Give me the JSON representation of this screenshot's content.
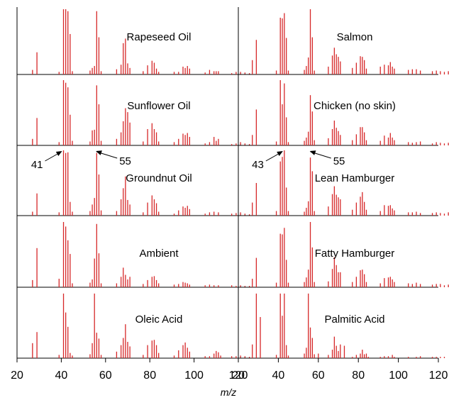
{
  "chart_data": {
    "type": "bar",
    "xlabel": "m/z",
    "xlim": [
      20,
      120
    ],
    "xticks": [
      20,
      40,
      60,
      80,
      100,
      120
    ],
    "bar_color": "#d62728",
    "layout": "5 rows x 2 columns of small-multiple mass spectra sharing the m/z axis",
    "panels": [
      {
        "label": "Rapeseed Oil",
        "x": [
          27,
          29,
          39,
          41,
          42,
          43,
          44,
          45,
          53,
          54,
          55,
          56,
          57,
          58,
          65,
          67,
          68,
          69,
          70,
          71,
          77,
          79,
          81,
          82,
          83,
          84,
          91,
          93,
          95,
          96,
          97,
          98,
          105,
          107,
          109,
          110,
          111,
          117,
          119,
          121,
          123,
          125
        ],
        "values": [
          0.07,
          0.34,
          0.04,
          1.0,
          1.0,
          0.97,
          0.62,
          0.05,
          0.06,
          0.1,
          0.13,
          0.97,
          0.57,
          0.05,
          0.08,
          0.15,
          0.48,
          0.55,
          0.17,
          0.1,
          0.05,
          0.14,
          0.21,
          0.18,
          0.09,
          0.04,
          0.04,
          0.04,
          0.12,
          0.1,
          0.13,
          0.09,
          0.03,
          0.07,
          0.05,
          0.05,
          0.05,
          0.02,
          0.04,
          0.04,
          0.03,
          0.02
        ]
      },
      {
        "label": "Salmon",
        "x": [
          27,
          29,
          39,
          41,
          42,
          43,
          44,
          45,
          53,
          54,
          55,
          56,
          57,
          58,
          65,
          67,
          68,
          69,
          70,
          71,
          77,
          79,
          81,
          82,
          83,
          84,
          91,
          93,
          95,
          96,
          97,
          98,
          105,
          107,
          109,
          111,
          117,
          119,
          121,
          123,
          125
        ],
        "values": [
          0.22,
          0.53,
          0.06,
          0.87,
          0.86,
          0.94,
          0.56,
          0.06,
          0.07,
          0.13,
          0.26,
          1.0,
          0.57,
          0.06,
          0.12,
          0.29,
          0.41,
          0.31,
          0.27,
          0.2,
          0.1,
          0.18,
          0.28,
          0.27,
          0.22,
          0.09,
          0.12,
          0.15,
          0.14,
          0.19,
          0.12,
          0.09,
          0.07,
          0.08,
          0.08,
          0.06,
          0.05,
          0.06,
          0.05,
          0.04,
          0.05
        ]
      },
      {
        "label": "Sunflower Oil",
        "x": [
          27,
          29,
          39,
          41,
          42,
          43,
          44,
          45,
          53,
          54,
          55,
          56,
          57,
          58,
          65,
          67,
          68,
          69,
          70,
          71,
          77,
          79,
          81,
          82,
          83,
          84,
          91,
          93,
          95,
          96,
          97,
          98,
          105,
          107,
          109,
          110,
          111,
          117,
          119,
          121,
          123,
          125
        ],
        "values": [
          0.1,
          0.42,
          0.05,
          1.0,
          0.96,
          0.89,
          0.47,
          0.07,
          0.06,
          0.23,
          0.24,
          0.92,
          0.63,
          0.07,
          0.1,
          0.2,
          0.37,
          0.57,
          0.51,
          0.35,
          0.06,
          0.25,
          0.34,
          0.25,
          0.2,
          0.06,
          0.05,
          0.1,
          0.18,
          0.16,
          0.19,
          0.13,
          0.03,
          0.05,
          0.13,
          0.07,
          0.1,
          0.02,
          0.03,
          0.05,
          0.03,
          0.02
        ]
      },
      {
        "label": "Chicken (no skin)",
        "x": [
          27,
          29,
          39,
          41,
          42,
          43,
          44,
          45,
          53,
          54,
          55,
          56,
          57,
          58,
          65,
          67,
          68,
          69,
          70,
          71,
          77,
          79,
          81,
          82,
          83,
          84,
          91,
          93,
          95,
          96,
          97,
          98,
          105,
          107,
          109,
          111,
          117,
          119,
          121,
          123,
          125
        ],
        "values": [
          0.16,
          0.55,
          0.06,
          1.0,
          0.63,
          0.95,
          0.43,
          0.05,
          0.07,
          0.12,
          0.21,
          0.77,
          0.52,
          0.08,
          0.11,
          0.25,
          0.38,
          0.27,
          0.22,
          0.16,
          0.08,
          0.17,
          0.28,
          0.28,
          0.2,
          0.08,
          0.07,
          0.15,
          0.12,
          0.19,
          0.12,
          0.08,
          0.05,
          0.04,
          0.05,
          0.06,
          0.03,
          0.05,
          0.04,
          0.03,
          0.04
        ]
      },
      {
        "label": "Groundnut Oil",
        "x": [
          27,
          29,
          39,
          41,
          42,
          43,
          44,
          45,
          53,
          54,
          55,
          56,
          57,
          58,
          65,
          67,
          68,
          69,
          70,
          71,
          77,
          79,
          81,
          82,
          83,
          84,
          91,
          93,
          95,
          96,
          97,
          98,
          105,
          107,
          109,
          111,
          117,
          119,
          121,
          123,
          125
        ],
        "values": [
          0.06,
          0.34,
          0.05,
          1.0,
          0.96,
          0.97,
          0.21,
          0.06,
          0.07,
          0.17,
          0.27,
          0.96,
          0.63,
          0.08,
          0.07,
          0.25,
          0.42,
          0.6,
          0.24,
          0.17,
          0.05,
          0.2,
          0.31,
          0.25,
          0.19,
          0.06,
          0.03,
          0.08,
          0.14,
          0.12,
          0.15,
          0.1,
          0.03,
          0.05,
          0.06,
          0.05,
          0.03,
          0.04,
          0.05,
          0.03,
          0.02
        ]
      },
      {
        "label": "Lean Hamburger",
        "x": [
          27,
          29,
          39,
          41,
          42,
          43,
          44,
          45,
          53,
          54,
          55,
          56,
          57,
          58,
          65,
          67,
          68,
          69,
          70,
          71,
          77,
          79,
          81,
          82,
          83,
          84,
          91,
          93,
          95,
          96,
          97,
          98,
          105,
          107,
          109,
          111,
          117,
          119,
          121,
          123,
          125
        ],
        "values": [
          0.2,
          0.5,
          0.07,
          0.83,
          0.9,
          1.0,
          0.43,
          0.07,
          0.06,
          0.12,
          0.22,
          0.89,
          0.68,
          0.07,
          0.14,
          0.33,
          0.45,
          0.32,
          0.28,
          0.25,
          0.09,
          0.2,
          0.29,
          0.36,
          0.21,
          0.09,
          0.07,
          0.16,
          0.15,
          0.16,
          0.11,
          0.08,
          0.05,
          0.05,
          0.06,
          0.04,
          0.04,
          0.05,
          0.04,
          0.03,
          0.05
        ]
      },
      {
        "label": "Ambient",
        "x": [
          27,
          29,
          39,
          41,
          42,
          43,
          44,
          45,
          53,
          54,
          55,
          56,
          57,
          58,
          65,
          67,
          68,
          69,
          70,
          71,
          77,
          79,
          81,
          82,
          83,
          84,
          91,
          93,
          95,
          96,
          97,
          98,
          105,
          107,
          109,
          111,
          117,
          119,
          121,
          123,
          125
        ],
        "values": [
          0.11,
          0.6,
          0.13,
          1.0,
          0.93,
          0.72,
          0.51,
          0.06,
          0.07,
          0.12,
          0.44,
          0.97,
          0.52,
          0.06,
          0.06,
          0.16,
          0.3,
          0.19,
          0.12,
          0.16,
          0.05,
          0.11,
          0.16,
          0.17,
          0.11,
          0.06,
          0.04,
          0.05,
          0.08,
          0.07,
          0.06,
          0.04,
          0.03,
          0.04,
          0.03,
          0.03,
          0.03,
          0.02,
          0.03,
          0.02,
          0.02
        ]
      },
      {
        "label": "Fatty Hamburger",
        "x": [
          27,
          29,
          39,
          41,
          42,
          43,
          44,
          45,
          53,
          54,
          55,
          56,
          57,
          58,
          65,
          67,
          68,
          69,
          70,
          71,
          77,
          79,
          81,
          82,
          83,
          84,
          91,
          93,
          95,
          96,
          97,
          98,
          105,
          107,
          109,
          111,
          117,
          119,
          121,
          123,
          125
        ],
        "values": [
          0.13,
          0.45,
          0.07,
          0.82,
          0.81,
          0.91,
          0.42,
          0.07,
          0.08,
          0.15,
          0.27,
          1.0,
          0.61,
          0.08,
          0.09,
          0.28,
          0.46,
          0.34,
          0.23,
          0.23,
          0.08,
          0.16,
          0.26,
          0.27,
          0.2,
          0.08,
          0.06,
          0.14,
          0.15,
          0.16,
          0.12,
          0.08,
          0.06,
          0.05,
          0.07,
          0.05,
          0.04,
          0.05,
          0.05,
          0.03,
          0.04
        ]
      },
      {
        "label": "Oleic Acid",
        "x": [
          27,
          29,
          39,
          41,
          42,
          43,
          44,
          45,
          53,
          54,
          55,
          56,
          57,
          58,
          65,
          67,
          68,
          69,
          70,
          71,
          77,
          79,
          81,
          82,
          83,
          84,
          91,
          93,
          95,
          96,
          97,
          98,
          105,
          107,
          109,
          110,
          111,
          112,
          117,
          119,
          121,
          123,
          125
        ],
        "values": [
          0.23,
          0.4,
          0.05,
          0.99,
          0.7,
          0.48,
          0.08,
          0.04,
          0.06,
          0.23,
          0.99,
          0.39,
          0.3,
          0.05,
          0.1,
          0.2,
          0.31,
          0.52,
          0.25,
          0.18,
          0.05,
          0.2,
          0.27,
          0.28,
          0.2,
          0.08,
          0.04,
          0.12,
          0.2,
          0.24,
          0.16,
          0.1,
          0.03,
          0.03,
          0.07,
          0.11,
          0.09,
          0.04,
          0.03,
          0.03,
          0.04,
          0.03,
          0.02
        ]
      },
      {
        "label": "Palmitic Acid",
        "x": [
          27,
          29,
          31,
          39,
          41,
          42,
          43,
          44,
          45,
          53,
          54,
          55,
          56,
          57,
          58,
          60,
          65,
          67,
          68,
          69,
          70,
          71,
          73,
          77,
          79,
          81,
          82,
          83,
          84,
          85,
          91,
          93,
          95,
          97,
          98,
          105,
          109,
          111,
          117,
          119,
          121,
          123
        ],
        "values": [
          0.21,
          0.99,
          0.63,
          0.05,
          0.99,
          0.65,
          0.99,
          0.2,
          0.04,
          0.07,
          0.16,
          0.99,
          0.47,
          0.31,
          0.06,
          0.07,
          0.05,
          0.13,
          0.33,
          0.19,
          0.11,
          0.21,
          0.19,
          0.02,
          0.05,
          0.07,
          0.13,
          0.06,
          0.07,
          0.02,
          0.02,
          0.03,
          0.03,
          0.05,
          0.02,
          0.02,
          0.02,
          0.03,
          0.02,
          0.02,
          0.02,
          0.02
        ]
      }
    ],
    "annotations": [
      {
        "panel": 4,
        "text": "41",
        "target_x": 41
      },
      {
        "panel": 4,
        "text": "55",
        "target_x": 55
      },
      {
        "panel": 5,
        "text": "43",
        "target_x": 43
      },
      {
        "panel": 5,
        "text": "55",
        "target_x": 55
      }
    ]
  }
}
